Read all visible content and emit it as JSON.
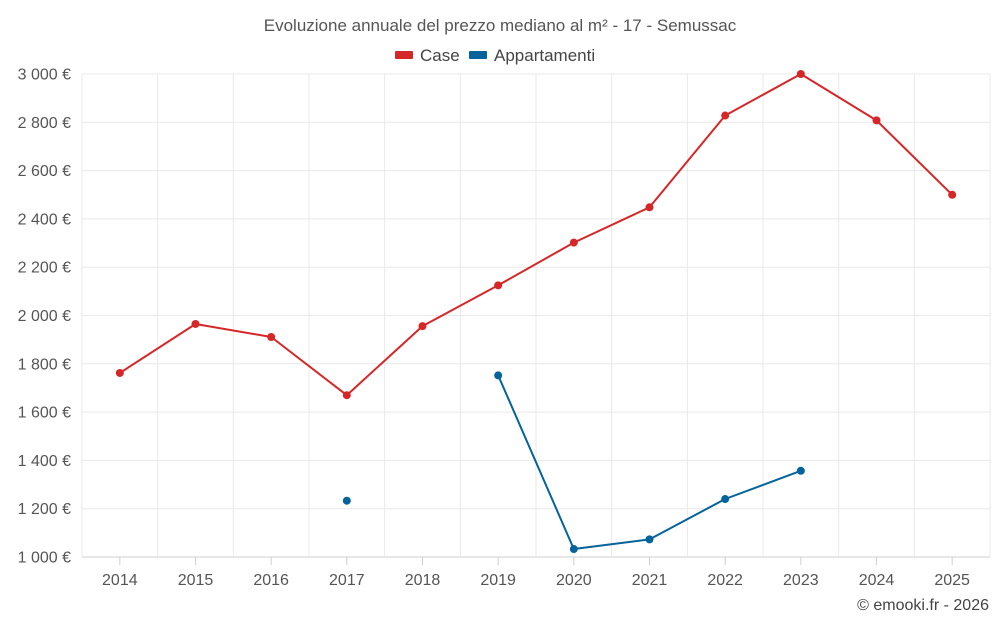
{
  "chart_data": {
    "type": "line",
    "title": "Evoluzione annuale del prezzo mediano al m² - 17 - Semussac",
    "categories": [
      "2014",
      "2015",
      "2016",
      "2017",
      "2018",
      "2019",
      "2020",
      "2021",
      "2022",
      "2023",
      "2024",
      "2025"
    ],
    "series": [
      {
        "name": "Case",
        "color": "#d62728",
        "values": [
          1762,
          1965,
          1911,
          1670,
          1956,
          2125,
          2302,
          2448,
          2828,
          3000,
          2808,
          2500
        ]
      },
      {
        "name": "Appartamenti",
        "color": "#04639b",
        "values": [
          null,
          null,
          null,
          1233,
          null,
          1752,
          1033,
          1073,
          1240,
          1357,
          null,
          null
        ]
      }
    ],
    "ylim": [
      1000,
      3000
    ],
    "yticks": [
      1000,
      1200,
      1400,
      1600,
      1800,
      2000,
      2200,
      2400,
      2600,
      2800,
      3000
    ],
    "ytick_labels": [
      "1 000 €",
      "1 200 €",
      "1 400 €",
      "1 600 €",
      "1 800 €",
      "2 000 €",
      "2 200 €",
      "2 400 €",
      "2 600 €",
      "2 800 €",
      "3 000 €"
    ],
    "xlabel": "",
    "ylabel": "",
    "grid": true,
    "legend": "top-center"
  },
  "credit": "© emooki.fr - 2026"
}
